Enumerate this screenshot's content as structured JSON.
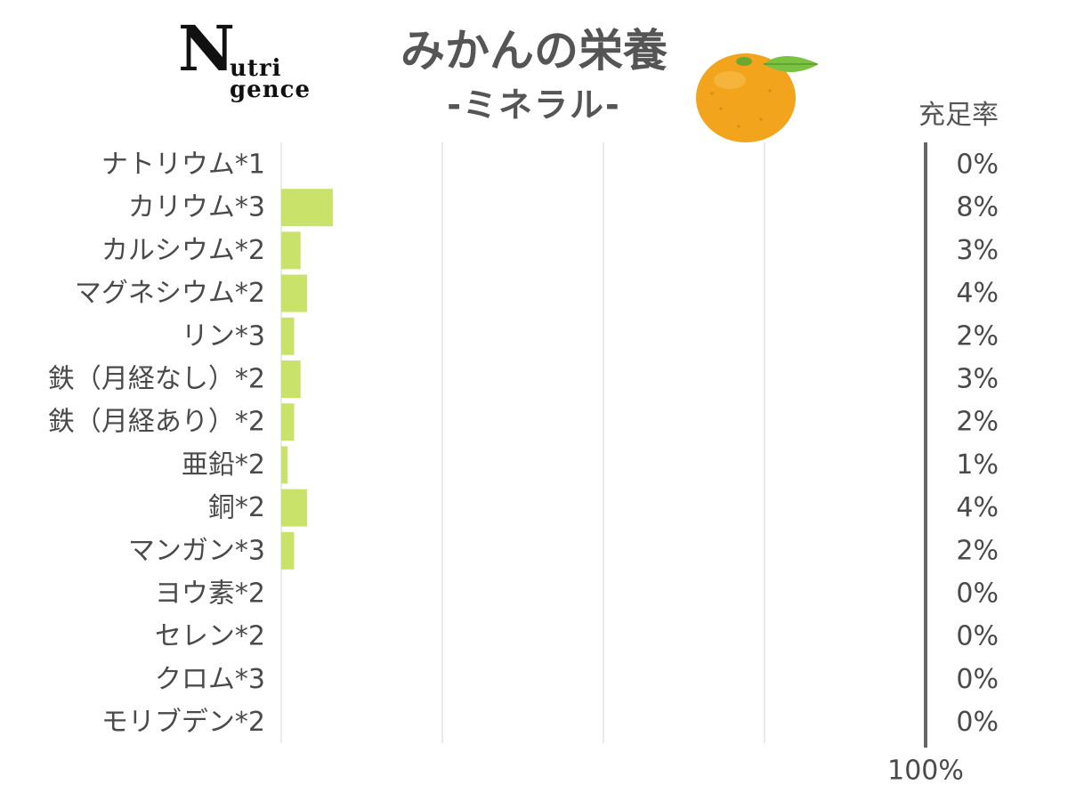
{
  "logo": {
    "big_letter": "N",
    "line1": "utri",
    "line2": "gence"
  },
  "title": "みかんの栄養",
  "subtitle": "-ミネラル-",
  "icons": {
    "orange": "mandarin-orange-illustration"
  },
  "colors": {
    "bar": "#c8e26a",
    "text": "#4a4a4a",
    "grid": "#dddddd",
    "reference_line": "#666666",
    "orange": "#f2a51c",
    "leaf": "#7cc242"
  },
  "chart_data": {
    "type": "bar",
    "orientation": "horizontal",
    "value_header": "充足率",
    "reference_label": "100%",
    "xlim": [
      0,
      100
    ],
    "grid": true,
    "categories": [
      "ナトリウム*1",
      "カリウム*3",
      "カルシウム*2",
      "マグネシウム*2",
      "リン*3",
      "鉄（月経なし）*2",
      "鉄（月経あり）*2",
      "亜鉛*2",
      "銅*2",
      "マンガン*3",
      "ヨウ素*2",
      "セレン*2",
      "クロム*3",
      "モリブデン*2"
    ],
    "values": [
      0,
      8,
      3,
      4,
      2,
      3,
      2,
      1,
      4,
      2,
      0,
      0,
      0,
      0
    ],
    "value_labels": [
      "0%",
      "8%",
      "3%",
      "4%",
      "2%",
      "3%",
      "2%",
      "1%",
      "4%",
      "2%",
      "0%",
      "0%",
      "0%",
      "0%"
    ]
  }
}
